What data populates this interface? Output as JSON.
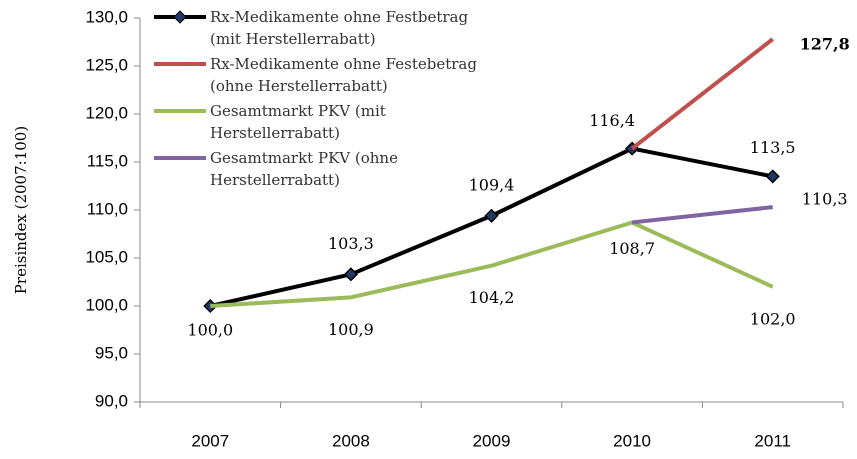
{
  "chart_data": {
    "type": "line",
    "y_label": "Preisindex (2007:100)",
    "categories": [
      "2007",
      "2008",
      "2009",
      "2010",
      "2011"
    ],
    "ylim": [
      90,
      130
    ],
    "yticks": [
      {
        "value": 90,
        "label": "90,0"
      },
      {
        "value": 95,
        "label": "95,0"
      },
      {
        "value": 100,
        "label": "100,0"
      },
      {
        "value": 105,
        "label": "105,0"
      },
      {
        "value": 110,
        "label": "110,0"
      },
      {
        "value": 115,
        "label": "115,0"
      },
      {
        "value": 120,
        "label": "120,0"
      },
      {
        "value": 125,
        "label": "125,0"
      },
      {
        "value": 130,
        "label": "130,0"
      }
    ],
    "grid": false,
    "legend": "top-left",
    "series": [
      {
        "name": "Rx-Medikamente ohne Festbetrag (mit Herstellerrabatt)",
        "color": "#000000",
        "marker": "diamond",
        "values": [
          100.0,
          103.3,
          109.4,
          116.4,
          113.5
        ],
        "value_labels": [
          "100,0",
          "103,3",
          "109,4",
          "116,4",
          "113,5"
        ]
      },
      {
        "name": "Rx-Medikamente ohne Festebetrag (ohne Herstellerrabatt)",
        "color": "#c0504d",
        "values": [
          null,
          null,
          null,
          116.4,
          127.8
        ],
        "value_labels": [
          null,
          null,
          null,
          null,
          "127,8"
        ]
      },
      {
        "name": "Gesamtmarkt PKV (mit Herstellerrabatt)",
        "color": "#9bbb59",
        "values": [
          100.0,
          100.9,
          104.2,
          108.7,
          102.0
        ],
        "value_labels": [
          null,
          "100,9",
          "104,2",
          "108,7",
          "102,0"
        ]
      },
      {
        "name": "Gesamtmarkt PKV (ohne Herstellerrabatt)",
        "color": "#8064a2",
        "values": [
          null,
          null,
          null,
          108.7,
          110.3
        ],
        "value_labels": [
          null,
          null,
          null,
          null,
          "110,3"
        ]
      }
    ]
  }
}
